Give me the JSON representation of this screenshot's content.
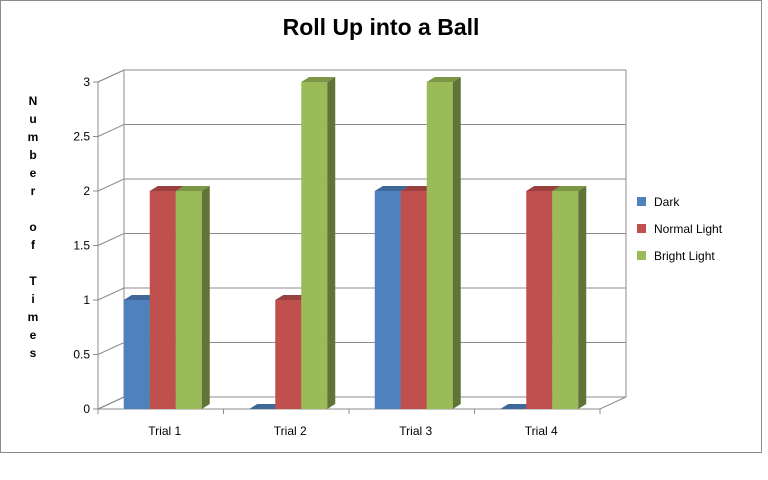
{
  "chart_data": {
    "type": "bar",
    "subtype": "3d-clustered-column",
    "title": "Roll Up into a Ball",
    "xlabel": "",
    "ylabel": "Number of Times",
    "ylabel_display": "N\nu\nm\nb\ne\nr\n\no\nf\n\nT\ni\nm\ne\ns",
    "categories": [
      "Trial 1",
      "Trial 2",
      "Trial 3",
      "Trial 4"
    ],
    "series": [
      {
        "name": "Dark",
        "values": [
          1,
          0,
          2,
          0
        ],
        "color": "#4f81bd"
      },
      {
        "name": "Normal Light",
        "values": [
          2,
          1,
          2,
          2
        ],
        "color": "#c0504d"
      },
      {
        "name": "Bright Light",
        "values": [
          2,
          3,
          3,
          2
        ],
        "color": "#9bbb59"
      }
    ],
    "yticks": [
      "0",
      "0.5",
      "1",
      "1.5",
      "2",
      "2.5",
      "3"
    ],
    "ylim": [
      0,
      3
    ],
    "grid": true,
    "legend": "right"
  }
}
